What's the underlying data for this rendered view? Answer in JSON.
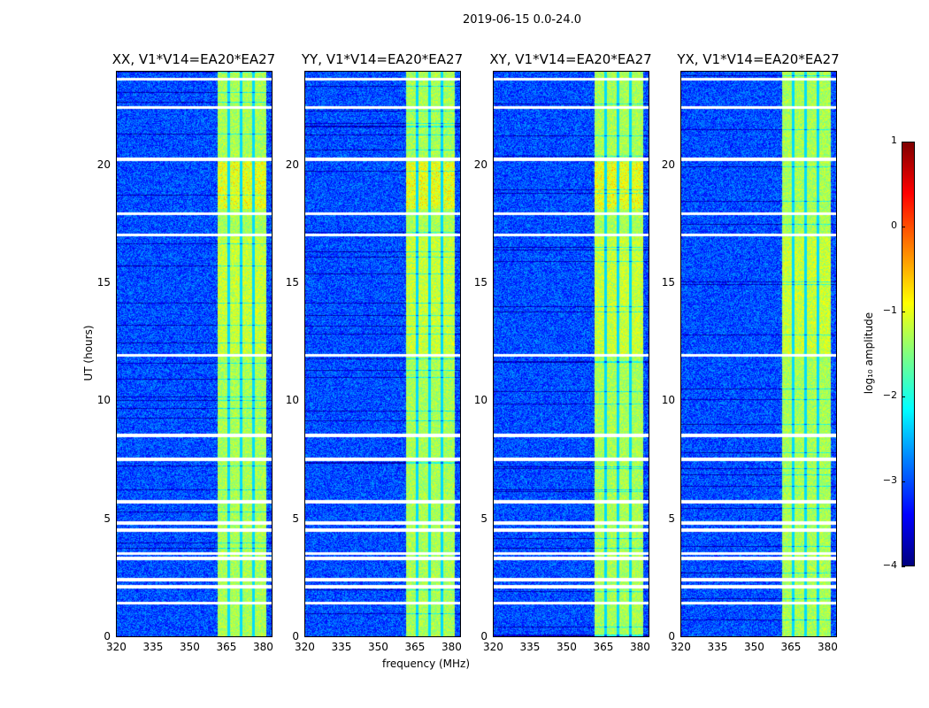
{
  "suptitle": "2019-06-15 0.0-24.0",
  "chart_data": {
    "type": "heatmap",
    "title": "2019-06-15 0.0-24.0",
    "xlabel": "frequency (MHz)",
    "ylabel": "UT (hours)",
    "xlim": [
      320,
      384
    ],
    "ylim": [
      0,
      24
    ],
    "xticks": [
      "320",
      "335",
      "350",
      "365",
      "380"
    ],
    "xtick_values": [
      320,
      335,
      350,
      365,
      380
    ],
    "yticks": [
      "0",
      "5",
      "10",
      "15",
      "20"
    ],
    "ytick_values": [
      0,
      5,
      10,
      15,
      20
    ],
    "panels": [
      {
        "title": "XX, V1*V14=EA20*EA27"
      },
      {
        "title": "YY, V1*V14=EA20*EA27"
      },
      {
        "title": "XY, V1*V14=EA20*EA27"
      },
      {
        "title": "YX, V1*V14=EA20*EA27"
      }
    ],
    "colorbar": {
      "label": "log₁₀ amplitude",
      "range": [
        -4,
        1
      ],
      "ticks": [
        "1",
        "0",
        "−1",
        "−2",
        "−3",
        "−4"
      ],
      "tick_values": [
        1,
        0,
        -1,
        -2,
        -3,
        -4
      ],
      "colormap": "jet"
    },
    "background_level_log10": -3,
    "bright_band_mhz": [
      361,
      381
    ],
    "bright_band_level_log10": -1.3,
    "bright_band_gaps_mhz": [
      365.5,
      370.5,
      375.6
    ],
    "flagged_hours": [
      23.7,
      22.5,
      20.3,
      18.0,
      17.1,
      12.0,
      8.6,
      7.6,
      5.8,
      4.9,
      4.6,
      3.6,
      3.4,
      2.5,
      2.2,
      1.5
    ]
  }
}
